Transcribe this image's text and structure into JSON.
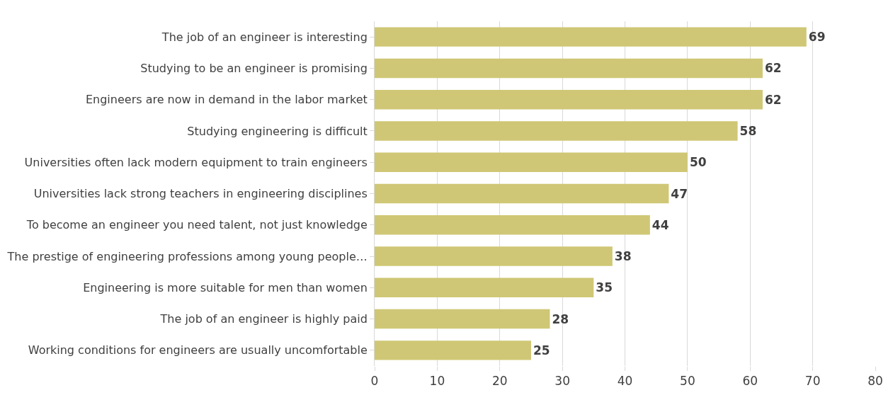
{
  "chart_data": {
    "type": "bar",
    "orientation": "horizontal",
    "categories": [
      "The job of an engineer is interesting",
      "Studying to be an engineer is promising",
      "Engineers are now in demand in the labor market",
      "Studying engineering is difficult",
      "Universities often lack modern equipment to train engineers",
      "Universities lack strong teachers in engineering disciplines",
      "To become an engineer you need talent, not just knowledge",
      "The prestige of engineering professions among young people…",
      "Engineering is more suitable for men than women",
      "The job of an engineer is highly paid",
      "Working conditions for engineers are usually uncomfortable"
    ],
    "values": [
      69,
      62,
      62,
      58,
      50,
      47,
      44,
      38,
      35,
      28,
      25
    ],
    "color": "#cfc775",
    "xlim": [
      0,
      80
    ],
    "xticks": [
      0,
      10,
      20,
      30,
      40,
      50,
      60,
      70,
      80
    ],
    "grid": "x",
    "data_labels": true
  }
}
